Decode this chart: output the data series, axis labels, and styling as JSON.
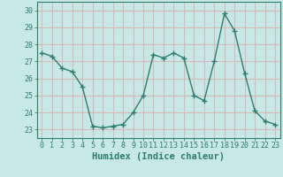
{
  "x": [
    0,
    1,
    2,
    3,
    4,
    5,
    6,
    7,
    8,
    9,
    10,
    11,
    12,
    13,
    14,
    15,
    16,
    17,
    18,
    19,
    20,
    21,
    22,
    23
  ],
  "y": [
    27.5,
    27.3,
    26.6,
    26.4,
    25.5,
    23.2,
    23.1,
    23.2,
    23.3,
    24.0,
    25.0,
    27.4,
    27.2,
    27.5,
    27.2,
    25.0,
    24.7,
    27.0,
    29.8,
    28.8,
    26.3,
    24.1,
    23.5,
    23.3
  ],
  "line_color": "#2d7d6e",
  "marker": "+",
  "marker_size": 4,
  "bg_color": "#c8e8e8",
  "grid_color": "#d8b8b8",
  "xlabel": "Humidex (Indice chaleur)",
  "ylabel_ticks": [
    23,
    24,
    25,
    26,
    27,
    28,
    29,
    30
  ],
  "xlim": [
    -0.5,
    23.5
  ],
  "ylim": [
    22.5,
    30.5
  ],
  "tick_label_color": "#2d7d6e",
  "axis_color": "#2d7d6e",
  "xlabel_color": "#2d7d6e",
  "xlabel_fontsize": 7.5,
  "tick_fontsize": 6.0,
  "line_width": 1.0
}
